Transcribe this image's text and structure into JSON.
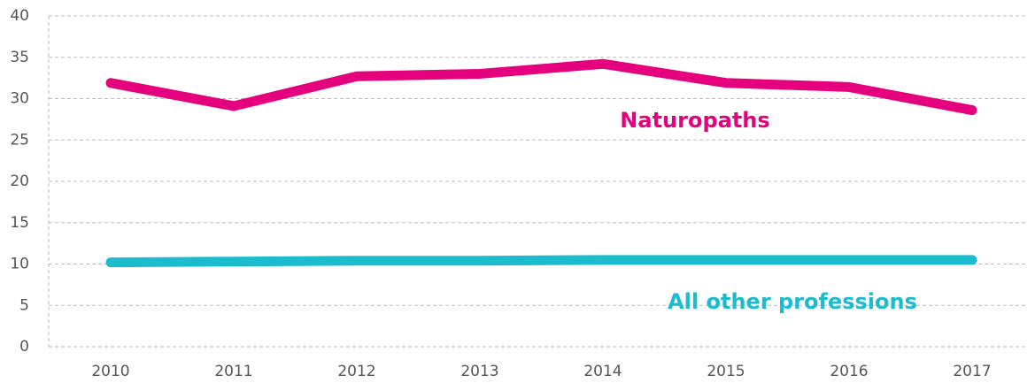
{
  "chart_data": {
    "type": "line",
    "categories": [
      "2010",
      "2011",
      "2012",
      "2013",
      "2014",
      "2015",
      "2016",
      "2017"
    ],
    "series": [
      {
        "name": "Naturopaths",
        "color": "#e5007e",
        "values": [
          31.9,
          29.1,
          32.7,
          33.0,
          34.2,
          31.9,
          31.4,
          28.6
        ]
      },
      {
        "name": "All other professions",
        "color": "#1bbccd",
        "values": [
          10.2,
          10.3,
          10.4,
          10.4,
          10.5,
          10.5,
          10.5,
          10.5
        ]
      }
    ],
    "ylim": [
      0,
      40
    ],
    "yticks": [
      0,
      5,
      10,
      15,
      20,
      25,
      30,
      35,
      40
    ],
    "grid": true
  }
}
